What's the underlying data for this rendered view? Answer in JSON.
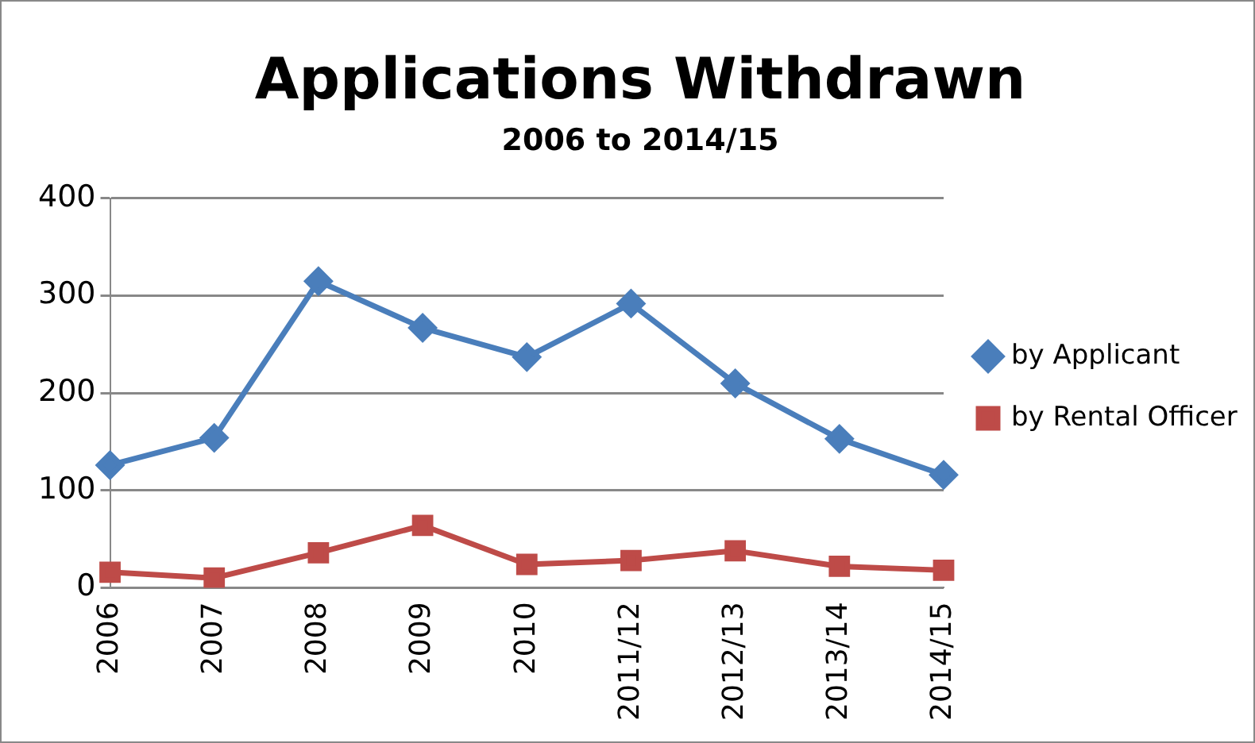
{
  "chart_data": {
    "type": "line",
    "title": "Applications Withdrawn",
    "subtitle": "2006 to 2014/15",
    "categories": [
      "2006",
      "2007",
      "2008",
      "2009",
      "2010",
      "2011/12",
      "2012/13",
      "2013/14",
      "2014/15"
    ],
    "series": [
      {
        "name": "by Applicant",
        "color": "#4a7ebb",
        "marker": "diamond",
        "values": [
          126,
          154,
          315,
          267,
          237,
          292,
          210,
          153,
          116
        ]
      },
      {
        "name": "by Rental Officer",
        "color": "#be4b48",
        "marker": "square",
        "values": [
          16,
          10,
          36,
          64,
          24,
          28,
          38,
          22,
          18
        ]
      }
    ],
    "ylim": [
      0,
      400
    ],
    "yticks": [
      0,
      100,
      200,
      300,
      400
    ],
    "grid": "y",
    "legend": "right",
    "line_style": "solid"
  }
}
